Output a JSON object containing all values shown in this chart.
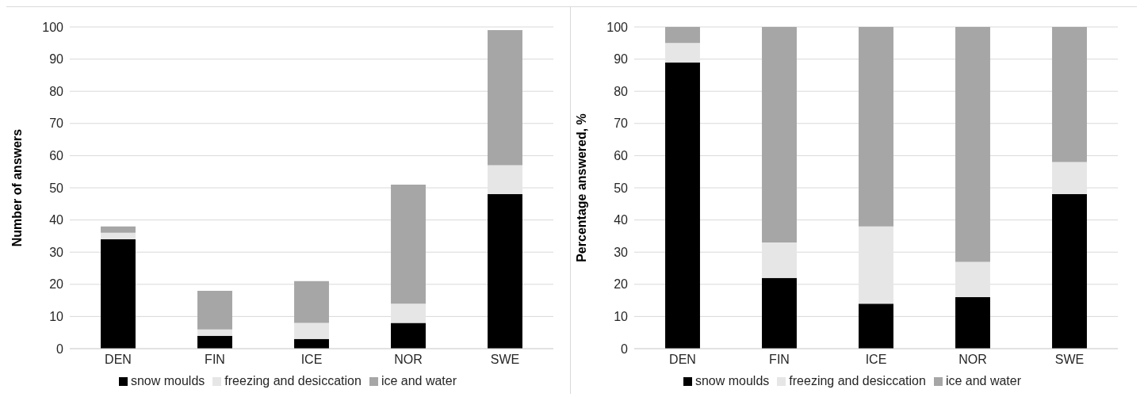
{
  "chart_data": [
    {
      "type": "bar",
      "stacked": true,
      "ylabel": "Number of answers",
      "categories": [
        "DEN",
        "FIN",
        "ICE",
        "NOR",
        "SWE"
      ],
      "series": [
        {
          "name": "snow moulds",
          "color": "#000000",
          "values": [
            34,
            4,
            3,
            8,
            48
          ]
        },
        {
          "name": "freezing and desiccation",
          "color": "#e6e6e6",
          "values": [
            2,
            2,
            5,
            6,
            9
          ]
        },
        {
          "name": "ice and water",
          "color": "#a6a6a6",
          "values": [
            2,
            12,
            13,
            37,
            42
          ]
        }
      ],
      "ylim": [
        0,
        100
      ],
      "yticks": [
        0,
        10,
        20,
        30,
        40,
        50,
        60,
        70,
        80,
        90,
        100
      ],
      "grid": "y",
      "legend": "bottom"
    },
    {
      "type": "bar",
      "stacked": true,
      "ylabel": "Percentage answered, %",
      "categories": [
        "DEN",
        "FIN",
        "ICE",
        "NOR",
        "SWE"
      ],
      "series": [
        {
          "name": "snow moulds",
          "color": "#000000",
          "values": [
            89,
            22,
            14,
            16,
            48
          ]
        },
        {
          "name": "freezing and desiccation",
          "color": "#e6e6e6",
          "values": [
            6,
            11,
            24,
            11,
            10
          ]
        },
        {
          "name": "ice and water",
          "color": "#a6a6a6",
          "values": [
            5,
            67,
            62,
            73,
            42
          ]
        }
      ],
      "ylim": [
        0,
        100
      ],
      "yticks": [
        0,
        10,
        20,
        30,
        40,
        50,
        60,
        70,
        80,
        90,
        100
      ],
      "grid": "y",
      "legend": "bottom"
    }
  ]
}
